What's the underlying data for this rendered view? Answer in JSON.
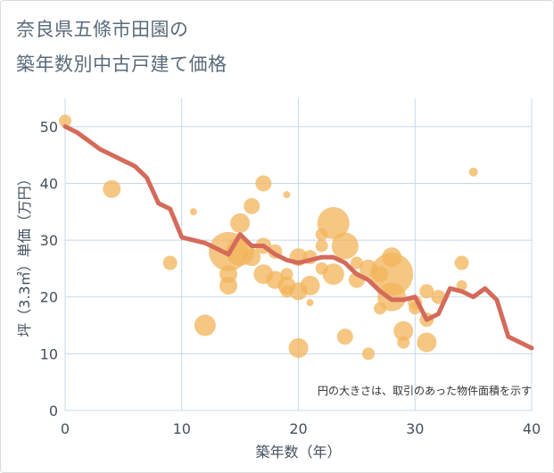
{
  "title_line1": "奈良県五條市田園の",
  "title_line2": "築年数別中古戸建て価格",
  "chart_data": {
    "type": "scatter+line",
    "xlabel": "築年数（年）",
    "ylabel": "坪（3.3㎡）単価（万円）",
    "xlim": [
      0,
      40
    ],
    "ylim": [
      0,
      55
    ],
    "xticks": [
      0,
      10,
      20,
      30,
      40
    ],
    "yticks": [
      0,
      10,
      20,
      30,
      40,
      50
    ],
    "grid": true,
    "note": "円の大きさは、取引のあった物件面積を示す",
    "colors": {
      "bubble": "#f2b45a",
      "line": "#d46b5a",
      "grid": "#c7d8e8"
    },
    "bubbles": [
      {
        "x": 0,
        "y": 51,
        "s": 7
      },
      {
        "x": 4,
        "y": 39,
        "s": 10
      },
      {
        "x": 9,
        "y": 26,
        "s": 8
      },
      {
        "x": 11,
        "y": 35,
        "s": 4
      },
      {
        "x": 12,
        "y": 15,
        "s": 12
      },
      {
        "x": 14,
        "y": 28,
        "s": 22
      },
      {
        "x": 14,
        "y": 24,
        "s": 10
      },
      {
        "x": 14,
        "y": 22,
        "s": 10
      },
      {
        "x": 15,
        "y": 33,
        "s": 11
      },
      {
        "x": 15,
        "y": 28,
        "s": 16
      },
      {
        "x": 16,
        "y": 36,
        "s": 9
      },
      {
        "x": 16,
        "y": 27,
        "s": 10
      },
      {
        "x": 17,
        "y": 40,
        "s": 9
      },
      {
        "x": 17,
        "y": 29,
        "s": 9
      },
      {
        "x": 17,
        "y": 24,
        "s": 11
      },
      {
        "x": 18,
        "y": 28,
        "s": 8
      },
      {
        "x": 18,
        "y": 23,
        "s": 10
      },
      {
        "x": 19,
        "y": 38,
        "s": 4
      },
      {
        "x": 19,
        "y": 24,
        "s": 7
      },
      {
        "x": 19,
        "y": 22,
        "s": 10
      },
      {
        "x": 19,
        "y": 21,
        "s": 7
      },
      {
        "x": 20,
        "y": 27,
        "s": 10
      },
      {
        "x": 20,
        "y": 21,
        "s": 10
      },
      {
        "x": 20,
        "y": 11,
        "s": 11
      },
      {
        "x": 21,
        "y": 27,
        "s": 8
      },
      {
        "x": 21,
        "y": 22,
        "s": 11
      },
      {
        "x": 21,
        "y": 19,
        "s": 4
      },
      {
        "x": 22,
        "y": 31,
        "s": 7
      },
      {
        "x": 22,
        "y": 29,
        "s": 7
      },
      {
        "x": 22,
        "y": 25,
        "s": 7
      },
      {
        "x": 23,
        "y": 33,
        "s": 18
      },
      {
        "x": 23,
        "y": 24,
        "s": 12
      },
      {
        "x": 24,
        "y": 29,
        "s": 15
      },
      {
        "x": 24,
        "y": 13,
        "s": 9
      },
      {
        "x": 25,
        "y": 26,
        "s": 7
      },
      {
        "x": 25,
        "y": 23,
        "s": 9
      },
      {
        "x": 26,
        "y": 25,
        "s": 10
      },
      {
        "x": 26,
        "y": 10,
        "s": 7
      },
      {
        "x": 27,
        "y": 24,
        "s": 9
      },
      {
        "x": 27,
        "y": 18,
        "s": 7
      },
      {
        "x": 28,
        "y": 27,
        "s": 11
      },
      {
        "x": 28,
        "y": 24,
        "s": 24
      },
      {
        "x": 28,
        "y": 20,
        "s": 16
      },
      {
        "x": 29,
        "y": 14,
        "s": 11
      },
      {
        "x": 29,
        "y": 12,
        "s": 7
      },
      {
        "x": 30,
        "y": 19,
        "s": 8
      },
      {
        "x": 30,
        "y": 18,
        "s": 7
      },
      {
        "x": 31,
        "y": 21,
        "s": 8
      },
      {
        "x": 31,
        "y": 16,
        "s": 8
      },
      {
        "x": 31,
        "y": 12,
        "s": 11
      },
      {
        "x": 32,
        "y": 20,
        "s": 8
      },
      {
        "x": 34,
        "y": 26,
        "s": 8
      },
      {
        "x": 34,
        "y": 22,
        "s": 6
      },
      {
        "x": 35,
        "y": 42,
        "s": 5
      }
    ],
    "line": {
      "x": [
        0,
        1,
        2,
        3,
        4,
        5,
        6,
        7,
        8,
        9,
        10,
        11,
        12,
        13,
        14,
        15,
        16,
        17,
        18,
        19,
        20,
        21,
        22,
        23,
        24,
        25,
        26,
        27,
        28,
        29,
        30,
        31,
        32,
        33,
        34,
        35,
        36,
        37,
        38,
        39,
        40
      ],
      "y": [
        50,
        49,
        47.5,
        46,
        45,
        44,
        43,
        41,
        36.5,
        35.5,
        30.5,
        30,
        29.5,
        28.5,
        27.5,
        31,
        29,
        29,
        27.5,
        26.5,
        26,
        26.5,
        27,
        27,
        26,
        24,
        23,
        21,
        19.5,
        19.5,
        20,
        16,
        17,
        21.5,
        21,
        20,
        21.5,
        19.5,
        13,
        12,
        11
      ]
    }
  }
}
